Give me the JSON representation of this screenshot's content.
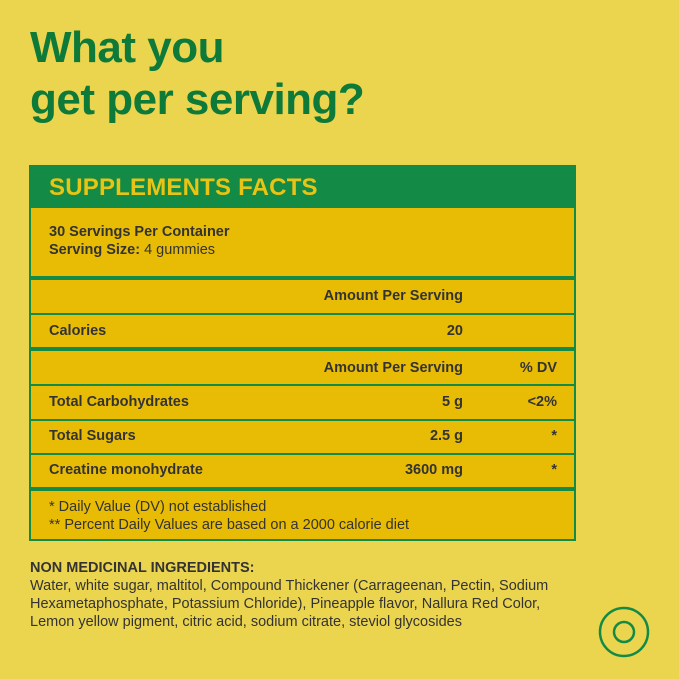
{
  "headline": {
    "line1": "What you",
    "line2": "get per serving?"
  },
  "facts": {
    "title": "SUPPLEMENTS FACTS",
    "servings_per_container": "30 Servings Per Container",
    "serving_size_label": "Serving Size:",
    "serving_size_value": "4 gummies",
    "amount_per_serving": "Amount Per Serving",
    "calories_label": "Calories",
    "calories_value": "20",
    "dv_header": "% DV",
    "rows": [
      {
        "name": "Total Carbohydrates",
        "amount": "5 g",
        "dv": "<2%"
      },
      {
        "name": "Total Sugars",
        "amount": "2.5 g",
        "dv": "*"
      },
      {
        "name": "Creatine monohydrate",
        "amount": "3600 mg",
        "dv": "*"
      }
    ],
    "footnote1": "* Daily Value (DV) not established",
    "footnote2": "** Percent Daily Values are based on a 2000 calorie diet"
  },
  "ingredients": {
    "title": "NON MEDICINAL INGREDIENTS:",
    "text": "Water, white sugar, maltitol, Compound Thickener (Carrageenan, Pectin, Sodium Hexametaphosphate, Potassium Chloride), Pineapple flavor, Nallura Red Color, Lemon yellow pigment, citric acid, sodium citrate, steviol glycosides"
  },
  "colors": {
    "background": "#EBD44E",
    "green": "#138A45",
    "panel": "#E8BC05"
  },
  "icons": {
    "badge": "concentric-circles-icon"
  }
}
